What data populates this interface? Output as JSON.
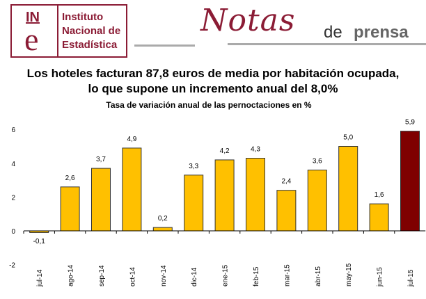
{
  "header": {
    "logo_mark_top": "IN",
    "logo_mark_bottom": "e",
    "logo_lines": [
      "Instituto",
      "Nacional de",
      "Estadística"
    ],
    "notas": "Notas",
    "de": "de",
    "prensa": "prensa"
  },
  "headline": {
    "line1": "Los hoteles facturan 87,8 euros de media por habitación ocupada,",
    "line2": "lo que supone un incremento anual del 8,0%"
  },
  "chart_data": {
    "type": "bar",
    "title": "Tasa de variación anual de las pernoctaciones en %",
    "categories": [
      "jul-14",
      "ago-14",
      "sep-14",
      "oct-14",
      "nov-14",
      "dic-14",
      "ene-15",
      "feb-15",
      "mar-15",
      "abr-15",
      "may-15",
      "jun-15",
      "jul-15"
    ],
    "values": [
      -0.1,
      2.6,
      3.7,
      4.9,
      0.2,
      3.3,
      4.2,
      4.3,
      2.4,
      3.6,
      5.0,
      1.6,
      5.9
    ],
    "labels": [
      "-0,1",
      "2,6",
      "3,7",
      "4,9",
      "0,2",
      "3,3",
      "4,2",
      "4,3",
      "2,4",
      "3,6",
      "5,0",
      "1,6",
      "5,9"
    ],
    "yticks": [
      -2,
      0,
      2,
      4,
      6
    ],
    "ylim": [
      -2,
      6
    ],
    "grid": false,
    "colors": {
      "default": "#ffc000",
      "highlight": "#7f0000"
    },
    "highlight_index": 12
  }
}
